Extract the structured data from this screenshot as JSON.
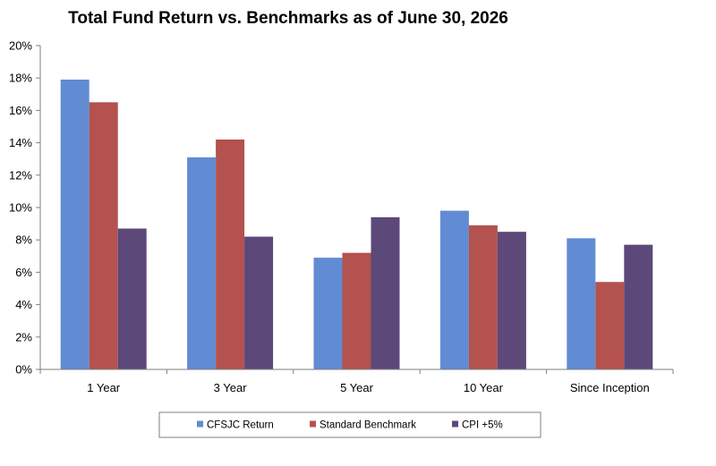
{
  "chart_data": {
    "type": "bar",
    "title": "Total Fund Return vs. Benchmarks as of June 30, 2026",
    "xlabel": "",
    "ylabel": "",
    "categories": [
      "1 Year",
      "3 Year",
      "5 Year",
      "10 Year",
      "Since Inception"
    ],
    "series": [
      {
        "name": "CFSJC Return",
        "color": "#618bd3",
        "values": [
          17.9,
          13.1,
          6.9,
          9.8,
          8.1
        ]
      },
      {
        "name": "Standard Benchmark",
        "color": "#b3524f",
        "values": [
          16.5,
          14.2,
          7.2,
          8.9,
          5.4
        ]
      },
      {
        "name": "CPI +5%",
        "color": "#5c4879",
        "values": [
          8.7,
          8.2,
          9.4,
          8.5,
          7.7
        ]
      }
    ],
    "ylim": [
      0,
      20
    ],
    "yticks": [
      0,
      2,
      4,
      6,
      8,
      10,
      12,
      14,
      16,
      18,
      20
    ],
    "ytick_format": "percent",
    "grid": false,
    "legend_position": "bottom"
  }
}
